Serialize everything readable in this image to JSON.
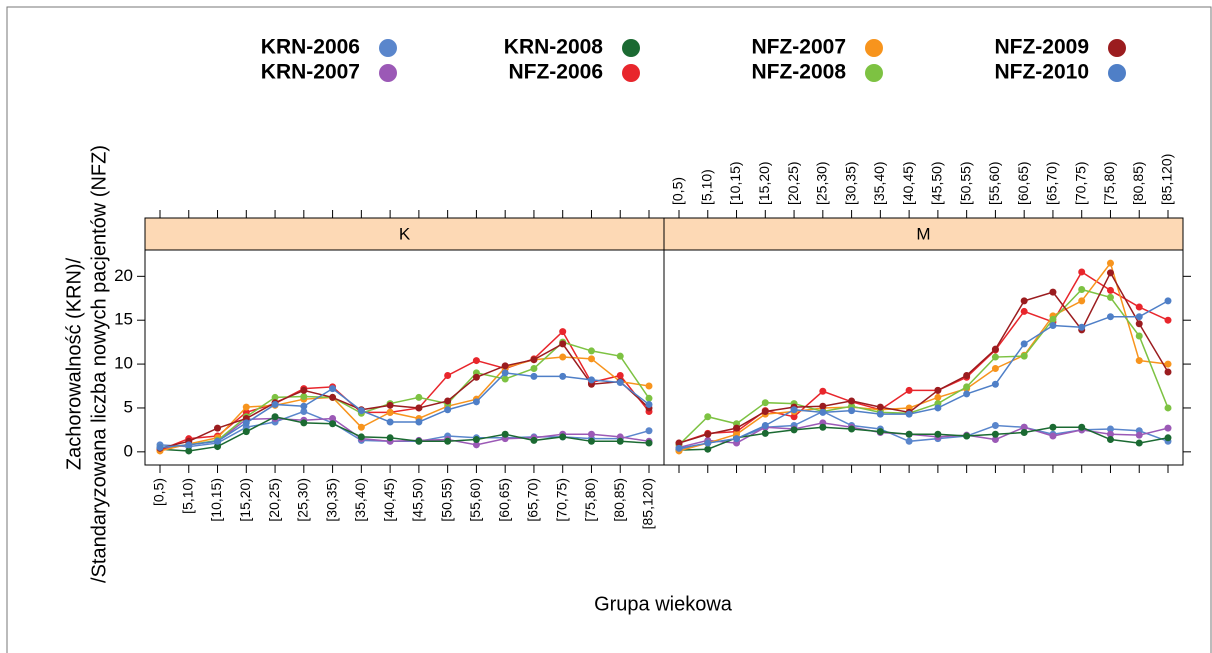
{
  "chart_data": {
    "type": "line",
    "ylabel": [
      "Zachorowalność (KRN)/",
      "/Standaryzowana liczba nowych pacjentów (NFZ)"
    ],
    "xlabel": "Grupa wiekowa",
    "panels": [
      "K",
      "M"
    ],
    "categories": [
      "[0,5)",
      "[5,10)",
      "[10,15)",
      "[15,20)",
      "[20,25)",
      "[25,30)",
      "[30,35)",
      "[35,40)",
      "[40,45)",
      "[45,50)",
      "[50,55)",
      "[55,60)",
      "[60,65)",
      "[65,70)",
      "[70,75)",
      "[75,80)",
      "[80,85)",
      "[85,120)"
    ],
    "ylim": [
      -1.5,
      23
    ],
    "yticks": [
      0,
      5,
      10,
      15,
      20
    ],
    "series": [
      {
        "name": "KRN-2006",
        "color": "#5a86cc",
        "values": [
          [
            0.8,
            0.6,
            1.0,
            2.8,
            3.4,
            4.6,
            3.3,
            1.3,
            1.2,
            1.2,
            1.8,
            1.6,
            1.6,
            1.7,
            1.7,
            1.5,
            1.5,
            2.4
          ],
          [
            0.2,
            1.0,
            1.5,
            2.8,
            3.0,
            4.6,
            3.0,
            2.6,
            1.2,
            1.5,
            1.8,
            3.0,
            2.8,
            2.0,
            2.5,
            2.6,
            2.4,
            1.2
          ]
        ]
      },
      {
        "name": "KRN-2007",
        "color": "#9b59b6",
        "values": [
          [
            0.3,
            0.8,
            1.2,
            3.7,
            3.8,
            3.6,
            3.8,
            1.5,
            1.2,
            1.3,
            1.4,
            0.8,
            1.5,
            1.6,
            2.0,
            2.0,
            1.7,
            1.2
          ],
          [
            0.5,
            1.3,
            1.0,
            2.8,
            2.6,
            3.3,
            2.8,
            2.2,
            2.0,
            1.7,
            1.9,
            1.4,
            2.8,
            1.8,
            2.5,
            2.0,
            1.9,
            2.7
          ]
        ]
      },
      {
        "name": "KRN-2008",
        "color": "#1b6a32",
        "values": [
          [
            0.3,
            0.1,
            0.6,
            2.3,
            4.0,
            3.3,
            3.2,
            1.7,
            1.6,
            1.2,
            1.2,
            1.4,
            2.0,
            1.3,
            1.7,
            1.2,
            1.2,
            1.0
          ],
          [
            0.2,
            0.3,
            1.6,
            2.1,
            2.5,
            2.8,
            2.6,
            2.3,
            2.0,
            2.0,
            1.8,
            2.0,
            2.2,
            2.8,
            2.8,
            1.4,
            1.0,
            1.6
          ]
        ]
      },
      {
        "name": "NFZ-2006",
        "color": "#e8262c",
        "values": [
          [
            0.2,
            1.5,
            1.8,
            4.5,
            5.5,
            7.2,
            7.4,
            4.5,
            4.5,
            5.0,
            8.7,
            10.4,
            9.5,
            10.6,
            13.7,
            7.9,
            8.7,
            4.6
          ],
          [
            1.0,
            2.1,
            2.3,
            4.7,
            4.0,
            6.9,
            5.7,
            4.8,
            7.0,
            7.0,
            8.5,
            11.6,
            16.0,
            14.8,
            20.5,
            18.4,
            16.5,
            15.0
          ]
        ]
      },
      {
        "name": "NFZ-2007",
        "color": "#f7941d",
        "values": [
          [
            0.1,
            0.9,
            1.6,
            5.1,
            5.3,
            6.0,
            6.2,
            2.8,
            4.5,
            3.8,
            5.2,
            6.0,
            9.6,
            10.5,
            10.8,
            10.6,
            8.0,
            7.5
          ],
          [
            0.1,
            1.0,
            2.0,
            4.3,
            4.6,
            5.0,
            5.1,
            4.8,
            5.0,
            6.2,
            7.2,
            9.5,
            11.0,
            15.5,
            17.2,
            21.5,
            10.4,
            10.0
          ]
        ]
      },
      {
        "name": "NFZ-2008",
        "color": "#7dc242",
        "values": [
          [
            0.5,
            0.8,
            1.3,
            4.0,
            6.2,
            6.3,
            6.2,
            4.4,
            5.5,
            6.2,
            5.5,
            9.0,
            8.3,
            9.5,
            12.5,
            11.5,
            10.9,
            6.1
          ],
          [
            0.8,
            4.0,
            3.2,
            5.6,
            5.5,
            4.6,
            5.2,
            4.5,
            4.4,
            5.5,
            7.4,
            10.8,
            10.9,
            15.1,
            18.5,
            17.6,
            13.2,
            5.0
          ]
        ]
      },
      {
        "name": "NFZ-2009",
        "color": "#9b1c1f",
        "values": [
          [
            0.4,
            1.2,
            2.7,
            3.8,
            5.6,
            7.0,
            6.2,
            4.8,
            5.3,
            5.0,
            5.8,
            8.5,
            9.8,
            10.5,
            12.3,
            7.7,
            8.0,
            5.0
          ],
          [
            1.0,
            2.0,
            2.7,
            4.6,
            5.1,
            5.2,
            5.8,
            5.1,
            4.5,
            7.0,
            8.7,
            11.7,
            17.2,
            18.2,
            13.9,
            20.4,
            14.6,
            9.1
          ]
        ]
      },
      {
        "name": "NFZ-2010",
        "color": "#4f7fc7",
        "values": [
          [
            0.5,
            0.8,
            1.2,
            3.3,
            5.4,
            5.2,
            7.2,
            4.7,
            3.4,
            3.4,
            4.8,
            5.7,
            9.0,
            8.6,
            8.6,
            8.2,
            7.9,
            5.4
          ],
          [
            0.4,
            1.0,
            1.5,
            3.0,
            4.8,
            4.5,
            4.7,
            4.3,
            4.3,
            5.0,
            6.6,
            7.7,
            12.3,
            14.4,
            14.2,
            15.4,
            15.4,
            17.2
          ]
        ]
      }
    ]
  }
}
